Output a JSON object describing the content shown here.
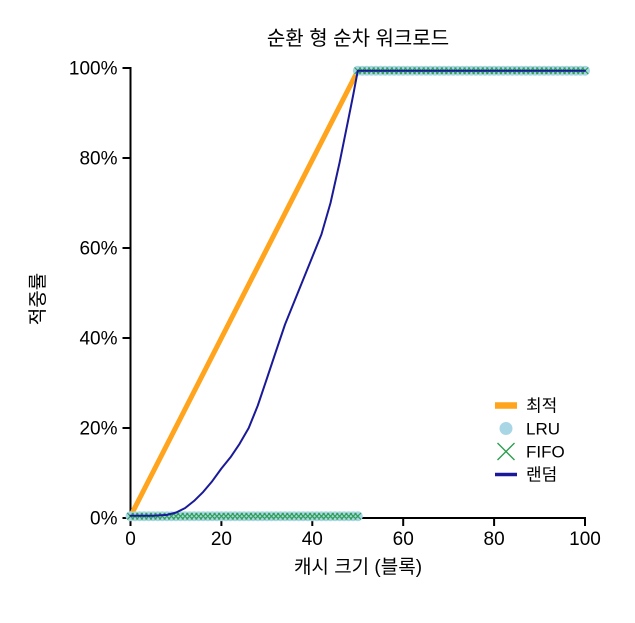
{
  "chart_data": {
    "type": "line",
    "title": "순환 형 순차 워크로드",
    "xlabel": "캐시 크기 (블록)",
    "ylabel": "적중률",
    "xlim": [
      0,
      100
    ],
    "ylim": [
      0,
      100
    ],
    "grid": false,
    "background": "#ffffff",
    "axis_color": "#000000",
    "text_color": "#000000",
    "legend_position": "lower right",
    "x_ticks": [
      {
        "value": 0,
        "label": "0"
      },
      {
        "value": 20,
        "label": "20"
      },
      {
        "value": 40,
        "label": "40"
      },
      {
        "value": 60,
        "label": "60"
      },
      {
        "value": 80,
        "label": "80"
      },
      {
        "value": 100,
        "label": "100"
      }
    ],
    "y_ticks": [
      {
        "value": 0,
        "label": "0%"
      },
      {
        "value": 20,
        "label": "20%"
      },
      {
        "value": 40,
        "label": "40%"
      },
      {
        "value": 60,
        "label": "60%"
      },
      {
        "value": 80,
        "label": "80%"
      },
      {
        "value": 100,
        "label": "100%"
      }
    ],
    "series": [
      {
        "id": "opt",
        "name": "최적",
        "type": "line",
        "color": "#FFA41C",
        "stroke_width": 5,
        "legend_marker": {
          "kind": "line",
          "width": 6.5
        },
        "points": [
          [
            0,
            0.4
          ],
          [
            50,
            99.4
          ],
          [
            100,
            99.4
          ]
        ]
      },
      {
        "id": "lru",
        "name": "LRU",
        "type": "scatter-circle",
        "color": "#A9D6E5",
        "radius": 5,
        "legend_marker": {
          "kind": "circle",
          "radius": 6.5
        },
        "segments": [
          {
            "x_start": 0,
            "x_end": 50,
            "step": 1,
            "y": 0.4
          },
          {
            "x_start": 50,
            "x_end": 100,
            "step": 1,
            "y": 99.4
          }
        ]
      },
      {
        "id": "fifo",
        "name": "FIFO",
        "type": "scatter-x",
        "color": "#2E9E50",
        "half_size": 3.2,
        "stroke_width": 1.2,
        "legend_marker": {
          "kind": "x",
          "half_size": 8.5,
          "width": 1.4
        },
        "segments": [
          {
            "x_start": 0,
            "x_end": 50,
            "step": 1,
            "y": 0.4
          },
          {
            "x_start": 50,
            "x_end": 100,
            "step": 1,
            "y": 99.4
          }
        ]
      },
      {
        "id": "random",
        "name": "랜덤",
        "type": "line",
        "color": "#1A1A99",
        "stroke_width": 2,
        "legend_marker": {
          "kind": "line",
          "width": 3.5
        },
        "points": [
          [
            0,
            0.5
          ],
          [
            5,
            0.5
          ],
          [
            8,
            0.7
          ],
          [
            10,
            1.2
          ],
          [
            12,
            2.2
          ],
          [
            14,
            3.8
          ],
          [
            16,
            5.8
          ],
          [
            18,
            8.2
          ],
          [
            20,
            11
          ],
          [
            22,
            13.5
          ],
          [
            24,
            16.5
          ],
          [
            26,
            20
          ],
          [
            28,
            25
          ],
          [
            30,
            31
          ],
          [
            32,
            37
          ],
          [
            34,
            43
          ],
          [
            36,
            48
          ],
          [
            38,
            53
          ],
          [
            40,
            58
          ],
          [
            42,
            63
          ],
          [
            44,
            70
          ],
          [
            46,
            79
          ],
          [
            48,
            89
          ],
          [
            49,
            94
          ],
          [
            50,
            99.4
          ],
          [
            100,
            99.4
          ]
        ]
      }
    ]
  }
}
